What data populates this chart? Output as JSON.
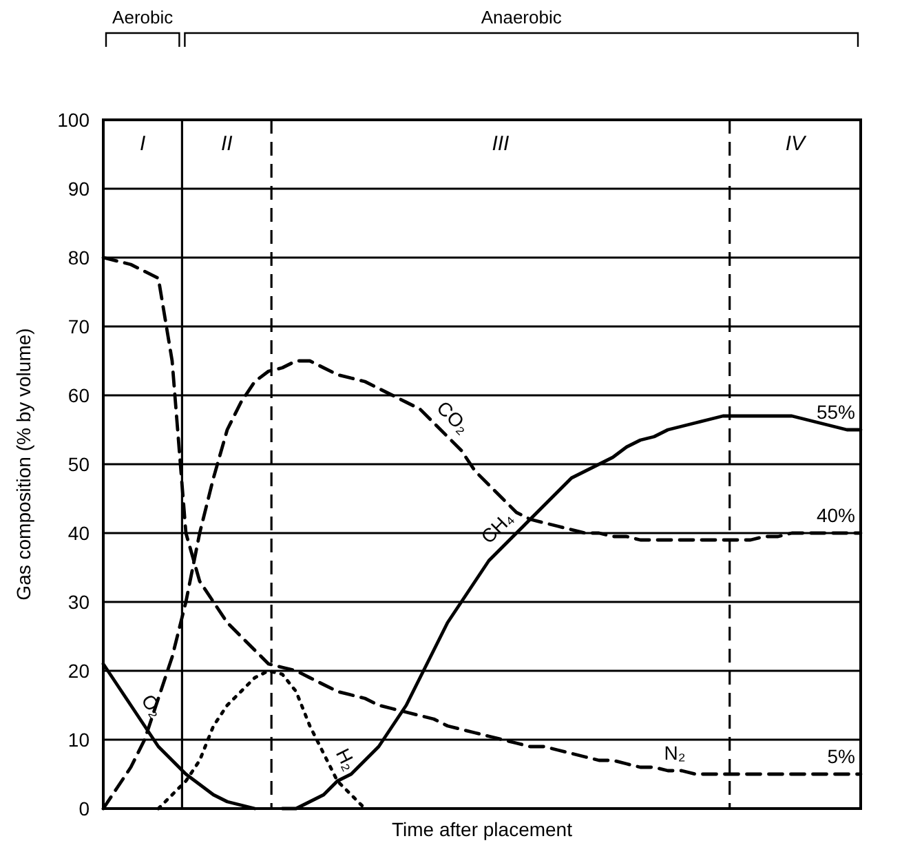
{
  "chart_data": {
    "type": "line",
    "xlabel": "Time after placement",
    "ylabel": "Gas composition (% by volume)",
    "ylim": [
      0,
      100
    ],
    "yticks": [
      0,
      10,
      20,
      30,
      40,
      50,
      60,
      70,
      80,
      90,
      100
    ],
    "tick_labels": "y",
    "grid": "y",
    "annotations": [
      "Aerobic",
      "Anaerobic",
      "I",
      "II",
      "III",
      "IV"
    ],
    "categories": [
      null,
      null,
      null,
      null,
      null,
      null,
      null,
      null,
      null,
      null,
      null,
      null,
      null,
      null,
      null,
      null,
      null,
      null,
      null,
      null,
      null,
      null,
      null,
      null,
      null,
      null,
      null,
      null,
      null,
      null,
      null,
      null,
      null,
      null,
      null,
      null,
      null,
      null,
      null,
      null,
      null,
      null,
      null,
      null,
      null,
      null,
      null,
      null,
      null,
      null,
      null,
      null,
      null,
      null,
      null,
      null
    ],
    "series": [
      {
        "name": "CO₂",
        "color": "#000000",
        "line_style": "dashed",
        "values": [
          0,
          3,
          6,
          10,
          16,
          22,
          30,
          40,
          48,
          55,
          59,
          62,
          63.5,
          64,
          65,
          65,
          64,
          63,
          62.5,
          62,
          61,
          60,
          59,
          58,
          56,
          54,
          52,
          49,
          47,
          45,
          43,
          42,
          41.5,
          41,
          40.5,
          40,
          40,
          39.5,
          39.5,
          39,
          39,
          39,
          39,
          39,
          39,
          39,
          39,
          39,
          39.5,
          39.5,
          40,
          40,
          40,
          40,
          40,
          40
        ],
        "value_labels": [
          null,
          null,
          null,
          null,
          null,
          null,
          null,
          null,
          null,
          null,
          null,
          null,
          null,
          null,
          null,
          null,
          null,
          null,
          null,
          null,
          null,
          null,
          null,
          null,
          null,
          null,
          null,
          null,
          null,
          null,
          null,
          null,
          null,
          null,
          null,
          null,
          null,
          null,
          null,
          null,
          null,
          null,
          null,
          null,
          null,
          null,
          null,
          null,
          null,
          null,
          null,
          null,
          null,
          null,
          null,
          "40%"
        ]
      },
      {
        "name": "N₂",
        "color": "#000000",
        "line_style": "dashed",
        "values": [
          80,
          79.5,
          79,
          78,
          77,
          65,
          40,
          33,
          30,
          27,
          25,
          23,
          21,
          20.5,
          20,
          19,
          18,
          17,
          16.5,
          16,
          15,
          14.5,
          14,
          13.5,
          13,
          12,
          11.5,
          11,
          10.5,
          10,
          9.5,
          9,
          9,
          8.5,
          8,
          7.5,
          7,
          7,
          6.5,
          6,
          6,
          5.5,
          5.5,
          5,
          5,
          5,
          5,
          5,
          5,
          5,
          5,
          5,
          5,
          5,
          5,
          5
        ],
        "value_labels": [
          null,
          null,
          null,
          null,
          null,
          null,
          null,
          null,
          null,
          null,
          null,
          null,
          null,
          null,
          null,
          null,
          null,
          null,
          null,
          null,
          null,
          null,
          null,
          null,
          null,
          null,
          null,
          null,
          null,
          null,
          null,
          null,
          null,
          null,
          null,
          null,
          null,
          null,
          null,
          null,
          null,
          null,
          null,
          null,
          null,
          null,
          null,
          null,
          null,
          null,
          null,
          null,
          null,
          null,
          null,
          "5%"
        ]
      },
      {
        "name": "O₂",
        "color": "#000000",
        "line_style": "solid",
        "values": [
          21,
          18,
          15,
          12,
          9,
          7,
          5,
          3.5,
          2,
          1,
          0.5,
          0,
          null,
          null,
          null,
          null,
          null,
          null,
          null,
          null,
          null,
          null,
          null,
          null,
          null,
          null,
          null,
          null,
          null,
          null,
          null,
          null,
          null,
          null,
          null,
          null,
          null,
          null,
          null,
          null,
          null,
          null,
          null,
          null,
          null,
          null,
          null,
          null,
          null,
          null,
          null,
          null,
          null,
          null,
          null,
          null
        ]
      },
      {
        "name": "CH₄",
        "color": "#000000",
        "line_style": "solid",
        "values": [
          null,
          null,
          null,
          null,
          null,
          null,
          null,
          null,
          null,
          null,
          null,
          null,
          null,
          0,
          0,
          1,
          2,
          4,
          5,
          7,
          9,
          12,
          15,
          19,
          23,
          27,
          30,
          33,
          36,
          38,
          40,
          42,
          44,
          46,
          48,
          49,
          50,
          51,
          52.5,
          53.5,
          54,
          55,
          55.5,
          56,
          56.5,
          57,
          57,
          57,
          57,
          57,
          57,
          56.5,
          56,
          55.5,
          55,
          55
        ],
        "value_labels": [
          null,
          null,
          null,
          null,
          null,
          null,
          null,
          null,
          null,
          null,
          null,
          null,
          null,
          null,
          null,
          null,
          null,
          null,
          null,
          null,
          null,
          null,
          null,
          null,
          null,
          null,
          null,
          null,
          null,
          null,
          null,
          null,
          null,
          null,
          null,
          null,
          null,
          null,
          null,
          null,
          null,
          null,
          null,
          null,
          null,
          null,
          null,
          null,
          null,
          null,
          null,
          null,
          null,
          null,
          null,
          "55%"
        ]
      },
      {
        "name": "H₂",
        "color": "#000000",
        "line_style": "dotted",
        "values": [
          null,
          null,
          null,
          null,
          0,
          2,
          4,
          7,
          12,
          15,
          17,
          19,
          20,
          19.5,
          17,
          12,
          8,
          4,
          2,
          0,
          null,
          null,
          null,
          null,
          null,
          null,
          null,
          null,
          null,
          null,
          null,
          null,
          null,
          null,
          null,
          null,
          null,
          null,
          null,
          null,
          null,
          null,
          null,
          null,
          null,
          null,
          null,
          null,
          null,
          null,
          null,
          null,
          null,
          null,
          null,
          null
        ]
      }
    ]
  }
}
